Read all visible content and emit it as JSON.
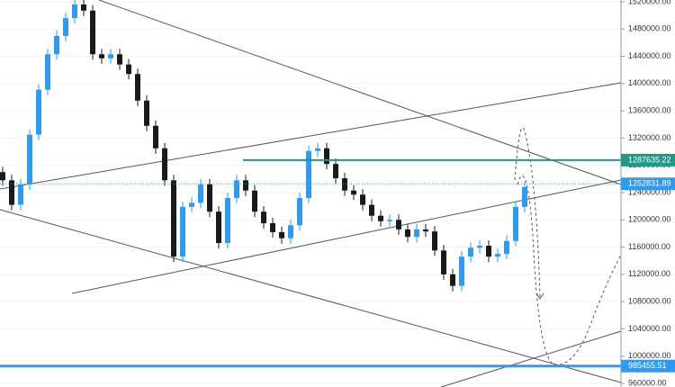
{
  "chart_data": {
    "type": "candlestick",
    "up_color": "#2e9bf0",
    "down_color": "#1a1a1a",
    "open": [
      1270000,
      1258000,
      1222000,
      1252000,
      1325000,
      1391000,
      1443000,
      1470000,
      1496000,
      1516000,
      1507000,
      1443000,
      1437000,
      1443000,
      1428000,
      1414000,
      1375000,
      1338000,
      1305000,
      1258000,
      1146000,
      1219000,
      1225000,
      1252000,
      1212000,
      1166000,
      1232000,
      1258000,
      1243000,
      1212000,
      1195000,
      1182000,
      1173000,
      1192000,
      1232000,
      1301000,
      1305000,
      1282000,
      1261000,
      1243000,
      1237000,
      1222000,
      1206000,
      1198000,
      1200000,
      1186000,
      1175000,
      1186000,
      1183000,
      1155000,
      1120000,
      1103000,
      1146000,
      1159000,
      1162000,
      1146000,
      1150000,
      1169000,
      1219000
    ],
    "high": [
      1278000,
      1266000,
      1260000,
      1333000,
      1399000,
      1451000,
      1478000,
      1504000,
      1524000,
      1524000,
      1515000,
      1451000,
      1451000,
      1451000,
      1436000,
      1422000,
      1383000,
      1346000,
      1313000,
      1266000,
      1227000,
      1233000,
      1260000,
      1260000,
      1220000,
      1240000,
      1266000,
      1266000,
      1251000,
      1220000,
      1203000,
      1190000,
      1200000,
      1240000,
      1309000,
      1313000,
      1313000,
      1290000,
      1269000,
      1251000,
      1245000,
      1230000,
      1214000,
      1208000,
      1208000,
      1194000,
      1194000,
      1194000,
      1191000,
      1163000,
      1128000,
      1154000,
      1167000,
      1170000,
      1170000,
      1158000,
      1177000,
      1227000,
      1256000
    ],
    "low": [
      1250000,
      1214000,
      1214000,
      1244000,
      1317000,
      1383000,
      1435000,
      1462000,
      1488000,
      1499000,
      1435000,
      1429000,
      1429000,
      1420000,
      1406000,
      1367000,
      1330000,
      1297000,
      1250000,
      1138000,
      1138000,
      1211000,
      1217000,
      1204000,
      1158000,
      1158000,
      1224000,
      1235000,
      1204000,
      1187000,
      1174000,
      1165000,
      1165000,
      1184000,
      1224000,
      1293000,
      1274000,
      1253000,
      1235000,
      1229000,
      1214000,
      1198000,
      1190000,
      1190000,
      1178000,
      1167000,
      1167000,
      1175000,
      1147000,
      1112000,
      1095000,
      1095000,
      1138000,
      1151000,
      1138000,
      1138000,
      1142000,
      1161000,
      1211000
    ],
    "close": [
      1258000,
      1222000,
      1252000,
      1325000,
      1391000,
      1443000,
      1470000,
      1496000,
      1516000,
      1507000,
      1443000,
      1437000,
      1443000,
      1428000,
      1414000,
      1375000,
      1338000,
      1305000,
      1258000,
      1146000,
      1219000,
      1225000,
      1252000,
      1212000,
      1166000,
      1232000,
      1258000,
      1243000,
      1212000,
      1195000,
      1182000,
      1173000,
      1192000,
      1232000,
      1301000,
      1305000,
      1282000,
      1261000,
      1243000,
      1237000,
      1222000,
      1206000,
      1198000,
      1200000,
      1186000,
      1175000,
      1186000,
      1183000,
      1155000,
      1120000,
      1103000,
      1146000,
      1159000,
      1162000,
      1146000,
      1150000,
      1169000,
      1219000,
      1248000
    ],
    "ylim": [
      954700,
      1522600
    ],
    "yticks": [
      {
        "value": 960000,
        "label": "960000.00"
      },
      {
        "value": 1000000,
        "label": "1000000.00"
      },
      {
        "value": 1040000,
        "label": "1040000.00"
      },
      {
        "value": 1080000,
        "label": "1080000.00"
      },
      {
        "value": 1120000,
        "label": "1120000.00"
      },
      {
        "value": 1160000,
        "label": "1160000.00"
      },
      {
        "value": 1200000,
        "label": "1200000.00"
      },
      {
        "value": 1240000,
        "label": "1240000.00"
      },
      {
        "value": 1280000,
        "label": "1280000.00"
      },
      {
        "value": 1320000,
        "label": "1320000.00"
      },
      {
        "value": 1360000,
        "label": "1360000.00"
      },
      {
        "value": 1400000,
        "label": "1400000.00"
      },
      {
        "value": 1440000,
        "label": "1440000.00"
      },
      {
        "value": 1480000,
        "label": "1480000.00"
      },
      {
        "value": 1520000,
        "label": "1520000.00"
      }
    ],
    "price_lines": [
      {
        "value": 1287635.22,
        "color": "#1f9a87",
        "style": "solid",
        "from_candle": 27
      },
      {
        "value": 1252831.89,
        "color": "#2e9bf0",
        "style": "dotted",
        "from_candle": 0
      },
      {
        "value": 985455.51,
        "color": "#2e9bf0",
        "style": "thick",
        "from_candle": 0
      }
    ]
  }
}
